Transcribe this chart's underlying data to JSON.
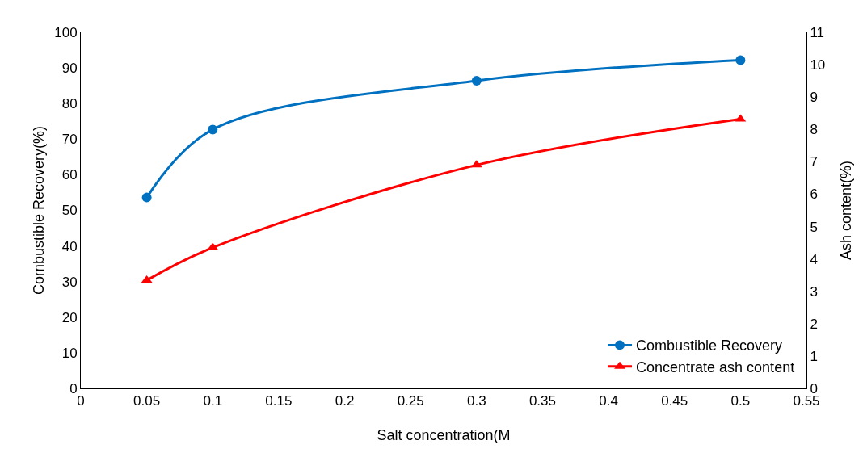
{
  "chart_data": {
    "type": "line",
    "xlabel": "Salt concentration(M",
    "ylabel": "Combustible Recovery(%)",
    "y2label": "Ash content(%)",
    "x": [
      0.05,
      0.1,
      0.3,
      0.5
    ],
    "series": [
      {
        "name": "Combustible Recovery",
        "color": "#0070c0",
        "values": [
          53.6,
          72.7,
          86.4,
          92.2
        ],
        "marker": "circle"
      },
      {
        "name": "Concentrate ash content",
        "color": "#ff0000",
        "values": [
          3.34,
          4.35,
          6.9,
          8.32
        ],
        "marker": "triangle",
        "axis": "y2"
      }
    ],
    "xlim": [
      0,
      0.55
    ],
    "xticks": [
      0,
      0.05,
      0.1,
      0.15,
      0.2,
      0.25,
      0.3,
      0.35,
      0.4,
      0.45,
      0.5,
      0.55
    ],
    "ylim": [
      0,
      100
    ],
    "yticks": [
      0,
      10,
      20,
      30,
      40,
      50,
      60,
      70,
      80,
      90,
      100
    ],
    "y2lim": [
      0,
      11
    ],
    "y2ticks": [
      0,
      1,
      2,
      3,
      4,
      5,
      6,
      7,
      8,
      9,
      10,
      11
    ],
    "grid": false,
    "legend": "bottom right",
    "line_style": "solid"
  }
}
